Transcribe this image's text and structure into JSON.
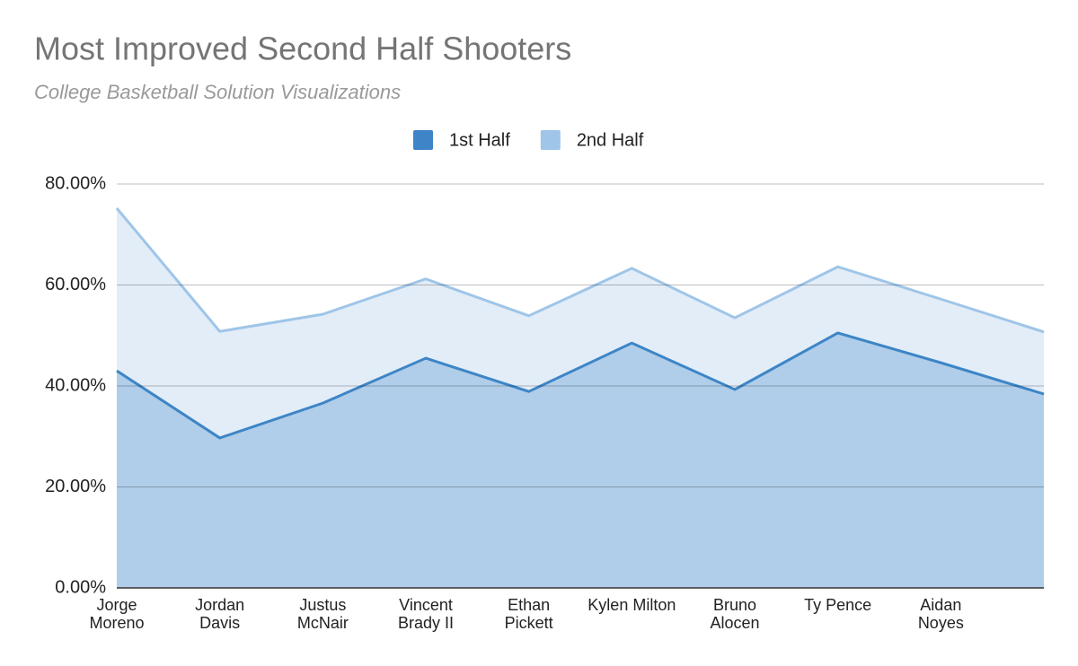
{
  "chart_data": {
    "type": "area",
    "title": "Most Improved Second Half Shooters",
    "subtitle": "College Basketball Solution Visualizations",
    "categories": [
      "Jorge Moreno",
      "Jordan Davis",
      "Justus McNair",
      "Vincent Brady II",
      "Ethan Pickett",
      "Kylen Milton",
      "Bruno Alocen",
      "Ty Pence",
      "Aidan Noyes",
      null
    ],
    "series": [
      {
        "name": "1st Half",
        "color": "#3d85c6",
        "values": [
          43.0,
          29.7,
          36.6,
          45.5,
          38.9,
          48.5,
          39.3,
          50.5,
          44.6,
          38.4
        ]
      },
      {
        "name": "2nd Half",
        "color": "#9fc5e8",
        "values": [
          75.2,
          50.8,
          54.2,
          61.2,
          53.9,
          63.3,
          53.5,
          63.6,
          57.2,
          50.7
        ]
      }
    ],
    "ylim": [
      0,
      80
    ],
    "yticks": [
      {
        "value": 0,
        "label": "0.00%"
      },
      {
        "value": 20,
        "label": "20.00%"
      },
      {
        "value": 40,
        "label": "40.00%"
      },
      {
        "value": 60,
        "label": "60.00%"
      },
      {
        "value": 80,
        "label": "80.00%"
      }
    ],
    "grid": true,
    "legend": "top"
  }
}
